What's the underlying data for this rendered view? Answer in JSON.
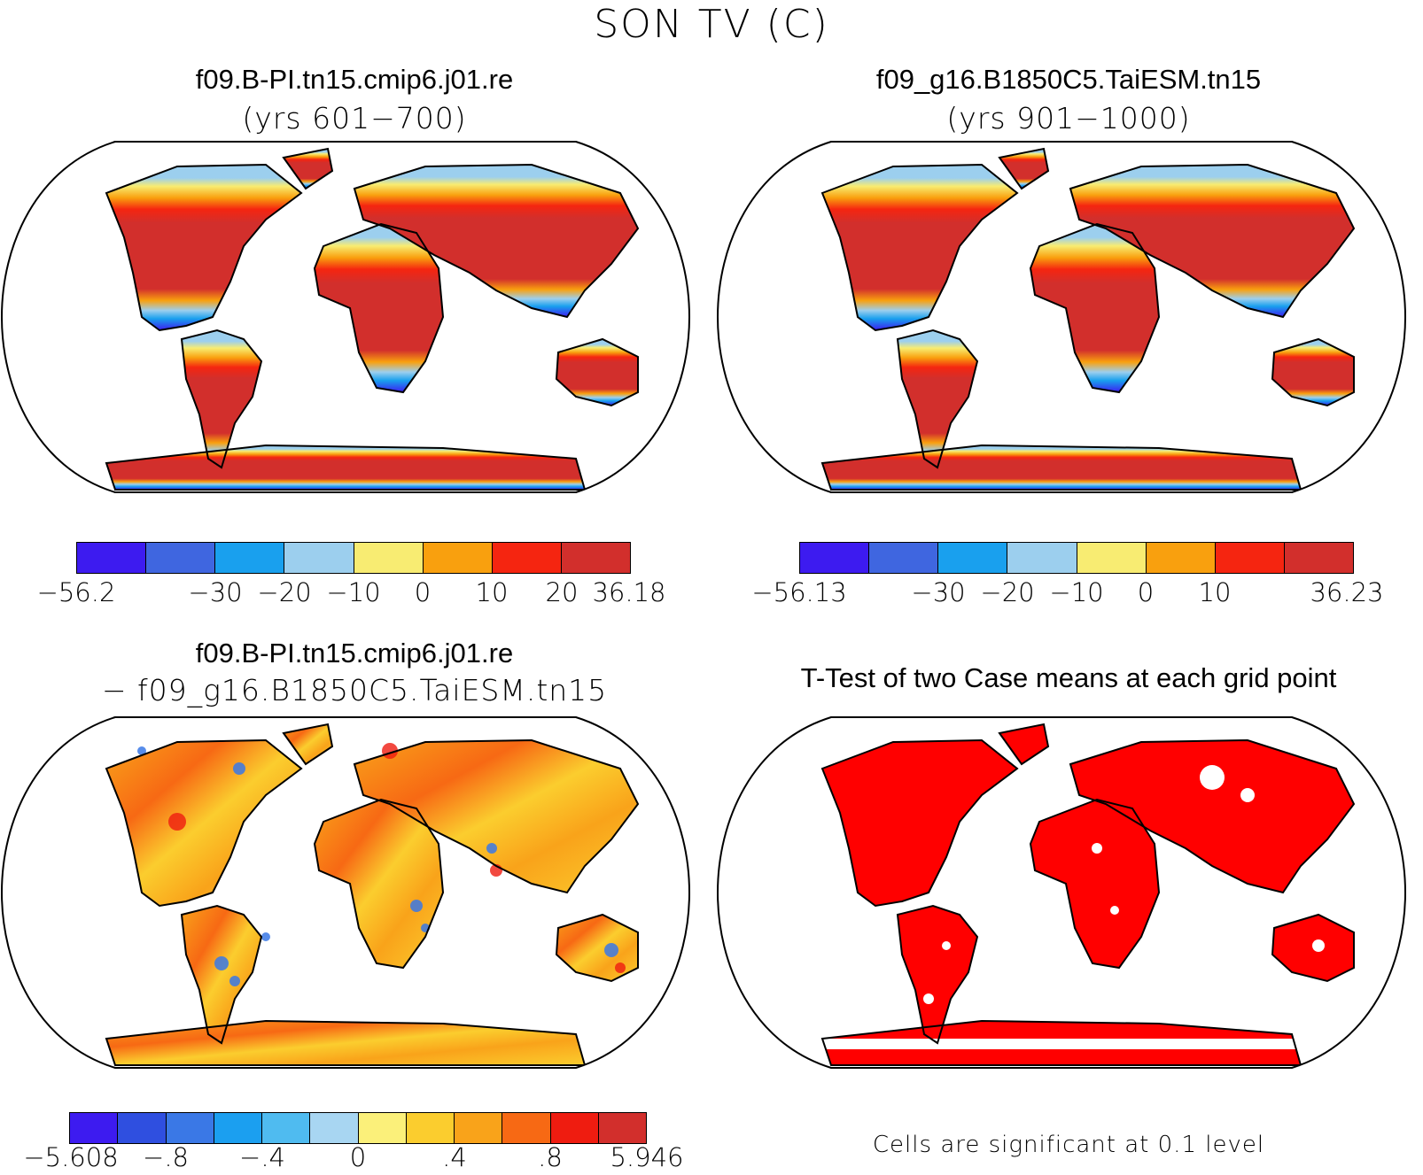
{
  "title": "SON TV (C)",
  "panels": {
    "a": {
      "title": "f09.B-PI.tn15.cmip6.j01.re",
      "subtitle": "(yrs 601−700)",
      "colorbar": {
        "colors": [
          "#3d1bf0",
          "#3f66e0",
          "#19a0ee",
          "#9ccfee",
          "#f8ec72",
          "#f9a00e",
          "#f52510",
          "#d22f2c"
        ],
        "labels": [
          "−56.2",
          "−30",
          "−20",
          "−10",
          "0",
          "10",
          "20",
          "36.18"
        ]
      }
    },
    "b": {
      "title": "f09_g16.B1850C5.TaiESM.tn15",
      "subtitle": "(yrs 901−1000)",
      "colorbar": {
        "colors": [
          "#3d1bf0",
          "#3f66e0",
          "#19a0ee",
          "#9ccfee",
          "#f8ec72",
          "#f9a00e",
          "#f52510",
          "#d22f2c"
        ],
        "labels": [
          "−56.13",
          "−30",
          "−20",
          "−10",
          "0",
          "10",
          "36.23"
        ]
      }
    },
    "c": {
      "title": "f09.B-PI.tn15.cmip6.j01.re",
      "subtitle": "− f09_g16.B1850C5.TaiESM.tn15",
      "colorbar": {
        "colors": [
          "#3d1bf0",
          "#2f4fe0",
          "#3a78e6",
          "#1b9ff0",
          "#4fbbf0",
          "#a8d6f2",
          "#fbf07a",
          "#fbcd2e",
          "#f9a31a",
          "#f76914",
          "#ef1c10",
          "#d22f2c"
        ],
        "labels": [
          "−5.608",
          "−.8",
          "−.4",
          "0",
          ".4",
          ".8",
          "5.946"
        ]
      }
    },
    "d": {
      "title": "T-Test of two Case means at each grid point",
      "note": "Cells are significant at 0.1 level"
    }
  }
}
